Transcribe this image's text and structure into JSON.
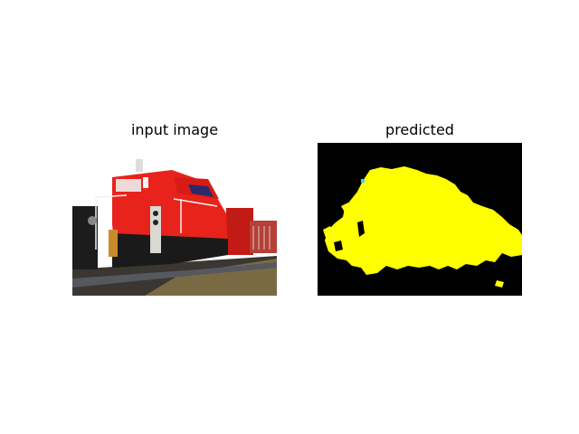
{
  "figure": {
    "left_title": "input image",
    "right_title": "predicted"
  },
  "colors": {
    "background": "#ffffff",
    "locomotive_red": "#e8231c",
    "mask_foreground": "#ffff00",
    "mask_background": "#000000",
    "ground": "#6b5a3a"
  },
  "icons": {
    "input": "train-photo-icon",
    "prediction": "segmentation-mask-icon"
  }
}
